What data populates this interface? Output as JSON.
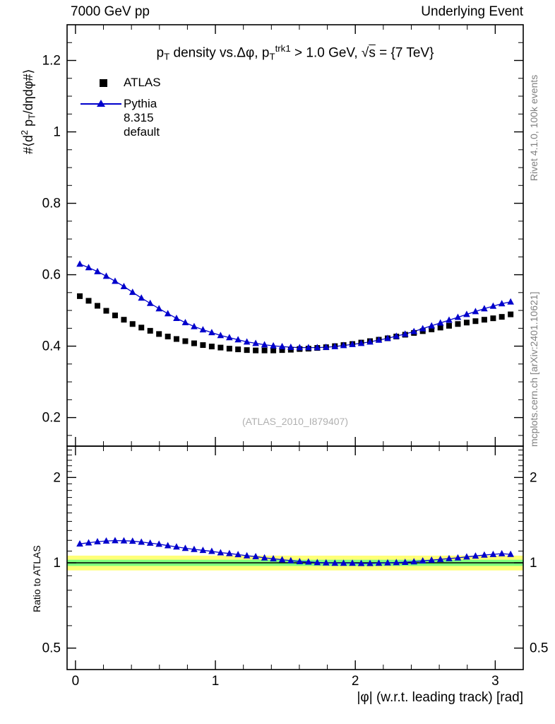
{
  "header": {
    "left": "7000 GeV pp",
    "right": "Underlying Event"
  },
  "side_notes": {
    "top": "Rivet 4.1.0, 100k events",
    "bottom": "mcplots.cern.ch [arXiv:2401.10621]"
  },
  "watermark": "(ATLAS_2010_I879407)",
  "title_segments": [
    {
      "t": "p"
    },
    {
      "t": "T",
      "s": "sub"
    },
    {
      "t": " density vs.Δφ, p"
    },
    {
      "t": "T",
      "s": "sub"
    },
    {
      "t": "trk1",
      "s": "sup"
    },
    {
      "t": " > 1.0 GeV, √"
    },
    {
      "t": "s",
      "s": "overline"
    },
    {
      "t": " = {7 TeV}"
    }
  ],
  "ylabel_segments": [
    {
      "t": "#⟨d"
    },
    {
      "t": "2",
      "s": "sup"
    },
    {
      "t": " p"
    },
    {
      "t": "T",
      "s": "sub"
    },
    {
      "t": "/dηdφ#⟩"
    }
  ],
  "legend": [
    {
      "label": "ATLAS",
      "marker": "square",
      "color": "#000000"
    },
    {
      "label": "Pythia 8.315 default",
      "marker": "triangle-line",
      "color": "#0000cc"
    }
  ],
  "colors": {
    "atlas": "#000000",
    "pythia": "#0000cc",
    "band_outer": "#ffff77",
    "band_inner": "#7dff7d",
    "frame": "#000000",
    "watermark": "#b0b0b0",
    "side_note": "#808080"
  },
  "chart_data": {
    "type": "scatter",
    "title": "pT density vs.Δφ, pT^trk1 > 1.0 GeV, √s = {7 TeV}",
    "xlabel": "|φ| (w.r.t. leading track) [rad]",
    "ylabel": "#⟨d² pT/dηdφ#⟩",
    "xlim": [
      -0.06,
      3.2
    ],
    "xticks": [
      0,
      1,
      2,
      3
    ],
    "xtick_labels": [
      "0",
      "1",
      "2",
      "3"
    ],
    "main": {
      "yscale": "linear",
      "ylim": [
        0.12,
        1.3
      ],
      "yticks": [
        0.2,
        0.4,
        0.6,
        0.8,
        1,
        1.2
      ],
      "ytick_labels": [
        "0.2",
        "0.4",
        "0.6",
        "0.8",
        "1",
        "1.2"
      ]
    },
    "ratio": {
      "label": "Ratio to ATLAS",
      "yscale": "log",
      "ylim": [
        0.42,
        2.58
      ],
      "yticks": [
        0.5,
        1,
        2
      ],
      "ytick_labels": [
        "0.5",
        "1",
        "2"
      ],
      "band_outer": [
        0.94,
        1.06
      ],
      "band_inner": [
        0.975,
        1.025
      ],
      "definition": "Pythia 8.315 default / ATLAS"
    },
    "x": [
      0.031,
      0.094,
      0.157,
      0.22,
      0.283,
      0.346,
      0.408,
      0.471,
      0.534,
      0.597,
      0.66,
      0.722,
      0.785,
      0.848,
      0.911,
      0.974,
      1.037,
      1.1,
      1.162,
      1.225,
      1.288,
      1.351,
      1.414,
      1.477,
      1.539,
      1.602,
      1.665,
      1.728,
      1.791,
      1.854,
      1.916,
      1.979,
      2.042,
      2.105,
      2.168,
      2.231,
      2.293,
      2.356,
      2.419,
      2.482,
      2.545,
      2.608,
      2.67,
      2.733,
      2.796,
      2.859,
      2.922,
      2.985,
      3.047,
      3.11
    ],
    "series": [
      {
        "name": "ATLAS",
        "marker": "square",
        "color": "#000000",
        "line": false,
        "values": [
          0.54,
          0.527,
          0.513,
          0.499,
          0.486,
          0.474,
          0.462,
          0.452,
          0.443,
          0.434,
          0.427,
          0.42,
          0.414,
          0.408,
          0.403,
          0.399,
          0.396,
          0.393,
          0.391,
          0.389,
          0.388,
          0.388,
          0.388,
          0.389,
          0.39,
          0.392,
          0.393,
          0.395,
          0.397,
          0.4,
          0.403,
          0.406,
          0.41,
          0.414,
          0.418,
          0.422,
          0.427,
          0.432,
          0.437,
          0.442,
          0.447,
          0.452,
          0.457,
          0.462,
          0.466,
          0.47,
          0.474,
          0.478,
          0.482,
          0.489
        ]
      },
      {
        "name": "Pythia 8.315 default",
        "marker": "triangle",
        "color": "#0000cc",
        "line": true,
        "values": [
          0.63,
          0.62,
          0.609,
          0.596,
          0.582,
          0.567,
          0.551,
          0.535,
          0.52,
          0.505,
          0.491,
          0.478,
          0.466,
          0.455,
          0.446,
          0.438,
          0.43,
          0.424,
          0.418,
          0.412,
          0.408,
          0.404,
          0.401,
          0.399,
          0.397,
          0.396,
          0.396,
          0.396,
          0.397,
          0.399,
          0.402,
          0.405,
          0.408,
          0.412,
          0.417,
          0.422,
          0.428,
          0.434,
          0.441,
          0.449,
          0.457,
          0.465,
          0.473,
          0.481,
          0.489,
          0.497,
          0.505,
          0.512,
          0.519,
          0.524
        ]
      }
    ]
  }
}
